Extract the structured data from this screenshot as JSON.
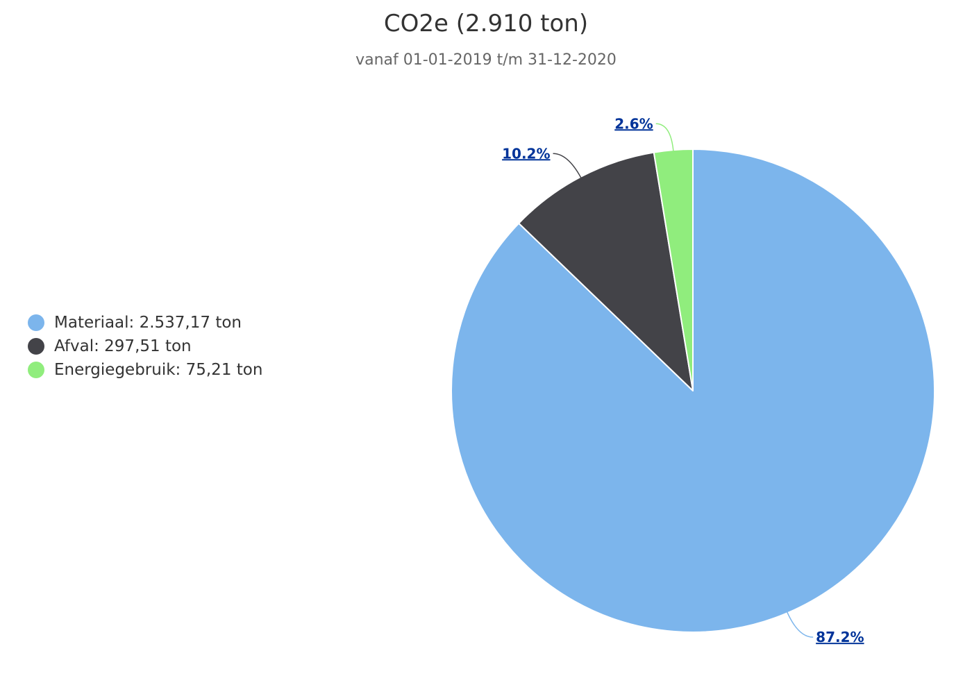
{
  "chart_data": {
    "type": "pie",
    "title": "CO2e (2.910 ton)",
    "subtitle": "vanaf 01-01-2019 t/m 31-12-2020",
    "legend_position": "left",
    "slices": [
      {
        "name": "Materiaal",
        "legend": "Materiaal: 2.537,17 ton",
        "value": 2537.17,
        "percent_label": "87.2%",
        "color": "#7cb5ec"
      },
      {
        "name": "Afval",
        "legend": "Afval: 297,51 ton",
        "value": 297.51,
        "percent_label": "10.2%",
        "color": "#434348"
      },
      {
        "name": "Energiegebruik",
        "legend": "Energiegebruik: 75,21 ton",
        "value": 75.21,
        "percent_label": "2.6%",
        "color": "#90ed7d"
      }
    ]
  }
}
